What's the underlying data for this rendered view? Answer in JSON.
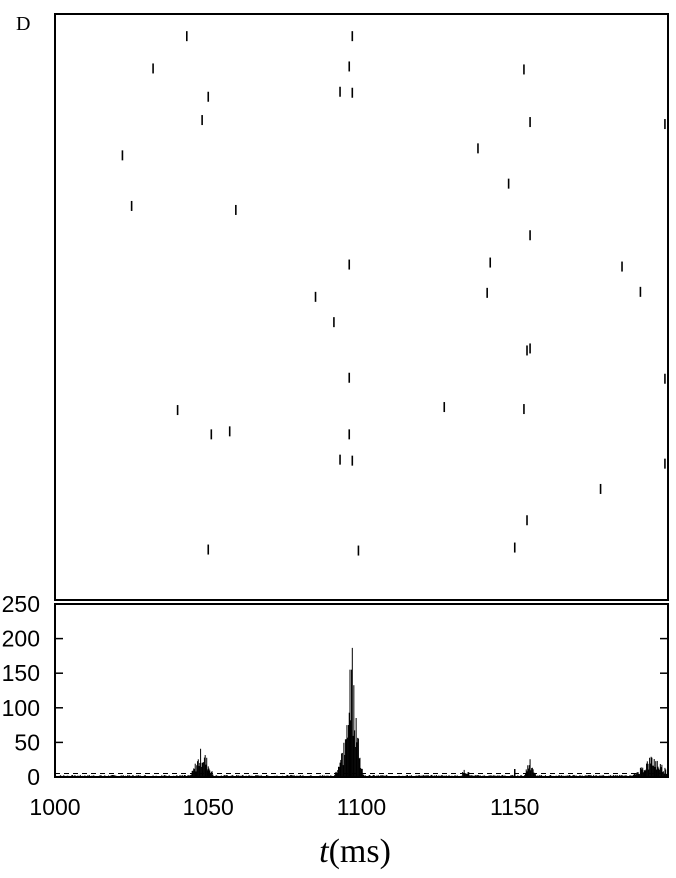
{
  "chart_data": [
    {
      "type": "scatter",
      "panel_label": "D",
      "description_kind": "spike raster",
      "xlim": [
        1000,
        1200
      ],
      "neurons": 20,
      "spikes": [
        {
          "t": 1043,
          "n": 1
        },
        {
          "t": 1097,
          "n": 1
        },
        {
          "t": 1032,
          "n": 2
        },
        {
          "t": 1096,
          "n": 2
        },
        {
          "t": 1153,
          "n": 2
        },
        {
          "t": 1050,
          "n": 3
        },
        {
          "t": 1093,
          "n": 3
        },
        {
          "t": 1097,
          "n": 3
        },
        {
          "t": 1048,
          "n": 4
        },
        {
          "t": 1155,
          "n": 4
        },
        {
          "t": 1199,
          "n": 4
        },
        {
          "t": 1022,
          "n": 5
        },
        {
          "t": 1138,
          "n": 5
        },
        {
          "t": 1148,
          "n": 6
        },
        {
          "t": 1025,
          "n": 7
        },
        {
          "t": 1059,
          "n": 7
        },
        {
          "t": 1155,
          "n": 8
        },
        {
          "t": 1142,
          "n": 9
        },
        {
          "t": 1096,
          "n": 9
        },
        {
          "t": 1185,
          "n": 9
        },
        {
          "t": 1085,
          "n": 10
        },
        {
          "t": 1141,
          "n": 10
        },
        {
          "t": 1191,
          "n": 10
        },
        {
          "t": 1091,
          "n": 11
        },
        {
          "t": 1154,
          "n": 12
        },
        {
          "t": 1155,
          "n": 12
        },
        {
          "t": 1096,
          "n": 13
        },
        {
          "t": 1199,
          "n": 13
        },
        {
          "t": 1040,
          "n": 14
        },
        {
          "t": 1127,
          "n": 14
        },
        {
          "t": 1153,
          "n": 14
        },
        {
          "t": 1057,
          "n": 15
        },
        {
          "t": 1051,
          "n": 15
        },
        {
          "t": 1096,
          "n": 15
        },
        {
          "t": 1093,
          "n": 16
        },
        {
          "t": 1097,
          "n": 16
        },
        {
          "t": 1199,
          "n": 16
        },
        {
          "t": 1178,
          "n": 17
        },
        {
          "t": 1154,
          "n": 18
        },
        {
          "t": 1050,
          "n": 19
        },
        {
          "t": 1099,
          "n": 19
        },
        {
          "t": 1150,
          "n": 19
        }
      ]
    },
    {
      "type": "bar",
      "xlabel": "t(ms)",
      "xlabel_italic_part": "t",
      "xlabel_unit_part": "(ms)",
      "xlim": [
        1000,
        1200
      ],
      "ylim": [
        0,
        250
      ],
      "xticks": [
        1000,
        1050,
        1100,
        1150
      ],
      "yticks": [
        0,
        50,
        100,
        150,
        200,
        250
      ],
      "threshold_dashed_line": 5,
      "peaks": [
        {
          "center": 1048,
          "width": 8,
          "height": 48
        },
        {
          "center": 1097,
          "width": 6,
          "height": 210
        },
        {
          "center": 1096,
          "width": 10,
          "height": 80
        },
        {
          "center": 1134,
          "width": 4,
          "height": 15
        },
        {
          "center": 1155,
          "width": 4,
          "height": 35
        },
        {
          "center": 1195,
          "width": 14,
          "height": 35
        }
      ],
      "baseline_level": 3
    }
  ]
}
